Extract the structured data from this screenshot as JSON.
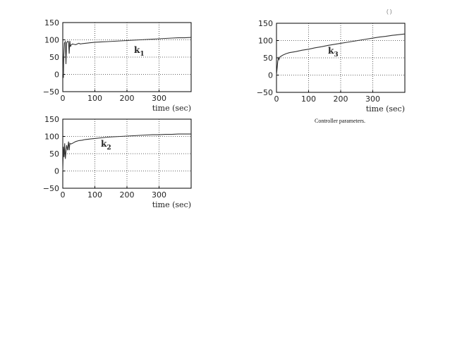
{
  "caption": "Controller parameters.",
  "corner_mark": "( )",
  "chart_data": [
    {
      "type": "line",
      "label": "k1",
      "label_sub": "1",
      "xlabel": "time (sec)",
      "xlim": [
        0,
        400
      ],
      "ylim": [
        -50,
        150
      ],
      "xticks": [
        0,
        100,
        200,
        300
      ],
      "yticks": [
        150,
        100,
        50,
        0,
        -50
      ],
      "grid": true,
      "series": [
        {
          "values": [
            [
              0,
              0
            ],
            [
              1,
              50
            ],
            [
              2,
              -10
            ],
            [
              3,
              55
            ],
            [
              5,
              90
            ],
            [
              8,
              95
            ],
            [
              10,
              30
            ],
            [
              12,
              92
            ],
            [
              16,
              96
            ],
            [
              18,
              93
            ],
            [
              20,
              60
            ],
            [
              22,
              97
            ],
            [
              24,
              80
            ],
            [
              26,
              85
            ],
            [
              30,
              88
            ],
            [
              35,
              87
            ],
            [
              40,
              86
            ],
            [
              45,
              88
            ],
            [
              50,
              90
            ],
            [
              55,
              88
            ],
            [
              60,
              89
            ],
            [
              70,
              90
            ],
            [
              80,
              91
            ],
            [
              90,
              92
            ],
            [
              100,
              93
            ],
            [
              120,
              94
            ],
            [
              140,
              95
            ],
            [
              160,
              96
            ],
            [
              180,
              97
            ],
            [
              200,
              98
            ],
            [
              220,
              99
            ],
            [
              240,
              100
            ],
            [
              260,
              101
            ],
            [
              280,
              102
            ],
            [
              300,
              103
            ],
            [
              320,
              104
            ],
            [
              340,
              105
            ],
            [
              360,
              106
            ],
            [
              380,
              106
            ],
            [
              400,
              107
            ]
          ]
        }
      ]
    },
    {
      "type": "line",
      "label": "k2",
      "label_sub": "2",
      "xlabel": "time (sec)",
      "xlim": [
        0,
        400
      ],
      "ylim": [
        -50,
        150
      ],
      "xticks": [
        0,
        100,
        200,
        300
      ],
      "yticks": [
        150,
        100,
        50,
        0,
        -50
      ],
      "grid": true,
      "series": [
        {
          "values": [
            [
              0,
              0
            ],
            [
              2,
              70
            ],
            [
              4,
              40
            ],
            [
              6,
              80
            ],
            [
              8,
              35
            ],
            [
              10,
              55
            ],
            [
              12,
              75
            ],
            [
              15,
              60
            ],
            [
              18,
              85
            ],
            [
              20,
              60
            ],
            [
              22,
              80
            ],
            [
              25,
              78
            ],
            [
              30,
              80
            ],
            [
              40,
              85
            ],
            [
              50,
              88
            ],
            [
              60,
              89
            ],
            [
              70,
              91
            ],
            [
              80,
              92
            ],
            [
              100,
              94
            ],
            [
              120,
              96
            ],
            [
              140,
              98
            ],
            [
              160,
              99
            ],
            [
              180,
              100
            ],
            [
              200,
              101
            ],
            [
              220,
              102
            ],
            [
              240,
              103
            ],
            [
              260,
              104
            ],
            [
              280,
              105
            ],
            [
              300,
              105
            ],
            [
              320,
              106
            ],
            [
              340,
              106
            ],
            [
              360,
              107
            ],
            [
              380,
              107
            ],
            [
              400,
              107
            ]
          ]
        }
      ]
    },
    {
      "type": "line",
      "label": "k3",
      "label_sub": "3",
      "xlabel": "time (sec)",
      "xlim": [
        0,
        400
      ],
      "ylim": [
        -50,
        150
      ],
      "xticks": [
        0,
        100,
        200,
        300
      ],
      "yticks": [
        150,
        100,
        50,
        0,
        -50
      ],
      "grid": true,
      "series": [
        {
          "values": [
            [
              0,
              0
            ],
            [
              2,
              20
            ],
            [
              4,
              40
            ],
            [
              6,
              50
            ],
            [
              8,
              45
            ],
            [
              10,
              52
            ],
            [
              15,
              55
            ],
            [
              20,
              58
            ],
            [
              30,
              62
            ],
            [
              40,
              65
            ],
            [
              60,
              68
            ],
            [
              80,
              72
            ],
            [
              100,
              75
            ],
            [
              120,
              79
            ],
            [
              140,
              82
            ],
            [
              160,
              86
            ],
            [
              180,
              89
            ],
            [
              200,
              92
            ],
            [
              220,
              95
            ],
            [
              240,
              98
            ],
            [
              260,
              101
            ],
            [
              280,
              104
            ],
            [
              300,
              107
            ],
            [
              320,
              110
            ],
            [
              340,
              112
            ],
            [
              360,
              115
            ],
            [
              380,
              117
            ],
            [
              400,
              119
            ]
          ]
        }
      ]
    }
  ]
}
